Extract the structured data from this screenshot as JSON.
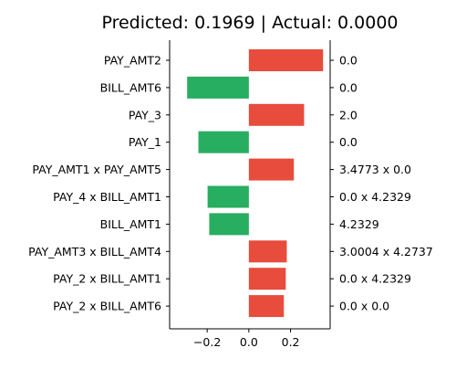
{
  "chart_data": {
    "type": "bar",
    "orientation": "horizontal",
    "title": "Predicted: 0.1969 | Actual: 0.0000",
    "xlabel": "",
    "ylabel": "",
    "xlim": [
      -0.38,
      0.39
    ],
    "xticks": [
      -0.2,
      0.0,
      0.2
    ],
    "xtick_labels": [
      "−0.2",
      "0.0",
      "0.2"
    ],
    "grid": false,
    "legend": "none",
    "colors": {
      "positive": "#e74c3c",
      "negative": "#27ae60",
      "axis": "#000000",
      "text": "#000000"
    },
    "bars": [
      {
        "label": "PAY_AMT2",
        "value": 0.356,
        "feature_value": "0.0"
      },
      {
        "label": "BILL_AMT6",
        "value": -0.296,
        "feature_value": "0.0"
      },
      {
        "label": "PAY_3",
        "value": 0.265,
        "feature_value": "2.0"
      },
      {
        "label": "PAY_1",
        "value": -0.242,
        "feature_value": "0.0"
      },
      {
        "label": "PAY_AMT1 x PAY_AMT5",
        "value": 0.216,
        "feature_value": "3.4773 x 0.0"
      },
      {
        "label": "PAY_4 x BILL_AMT1",
        "value": -0.198,
        "feature_value": "0.0 x 4.2329"
      },
      {
        "label": "BILL_AMT1",
        "value": -0.19,
        "feature_value": "4.2329"
      },
      {
        "label": "PAY_AMT3 x BILL_AMT4",
        "value": 0.182,
        "feature_value": "3.0004 x 4.2737"
      },
      {
        "label": "PAY_2 x BILL_AMT1",
        "value": 0.177,
        "feature_value": "0.0 x 4.2329"
      },
      {
        "label": "PAY_2 x BILL_AMT6",
        "value": 0.168,
        "feature_value": "0.0 x 0.0"
      }
    ]
  }
}
